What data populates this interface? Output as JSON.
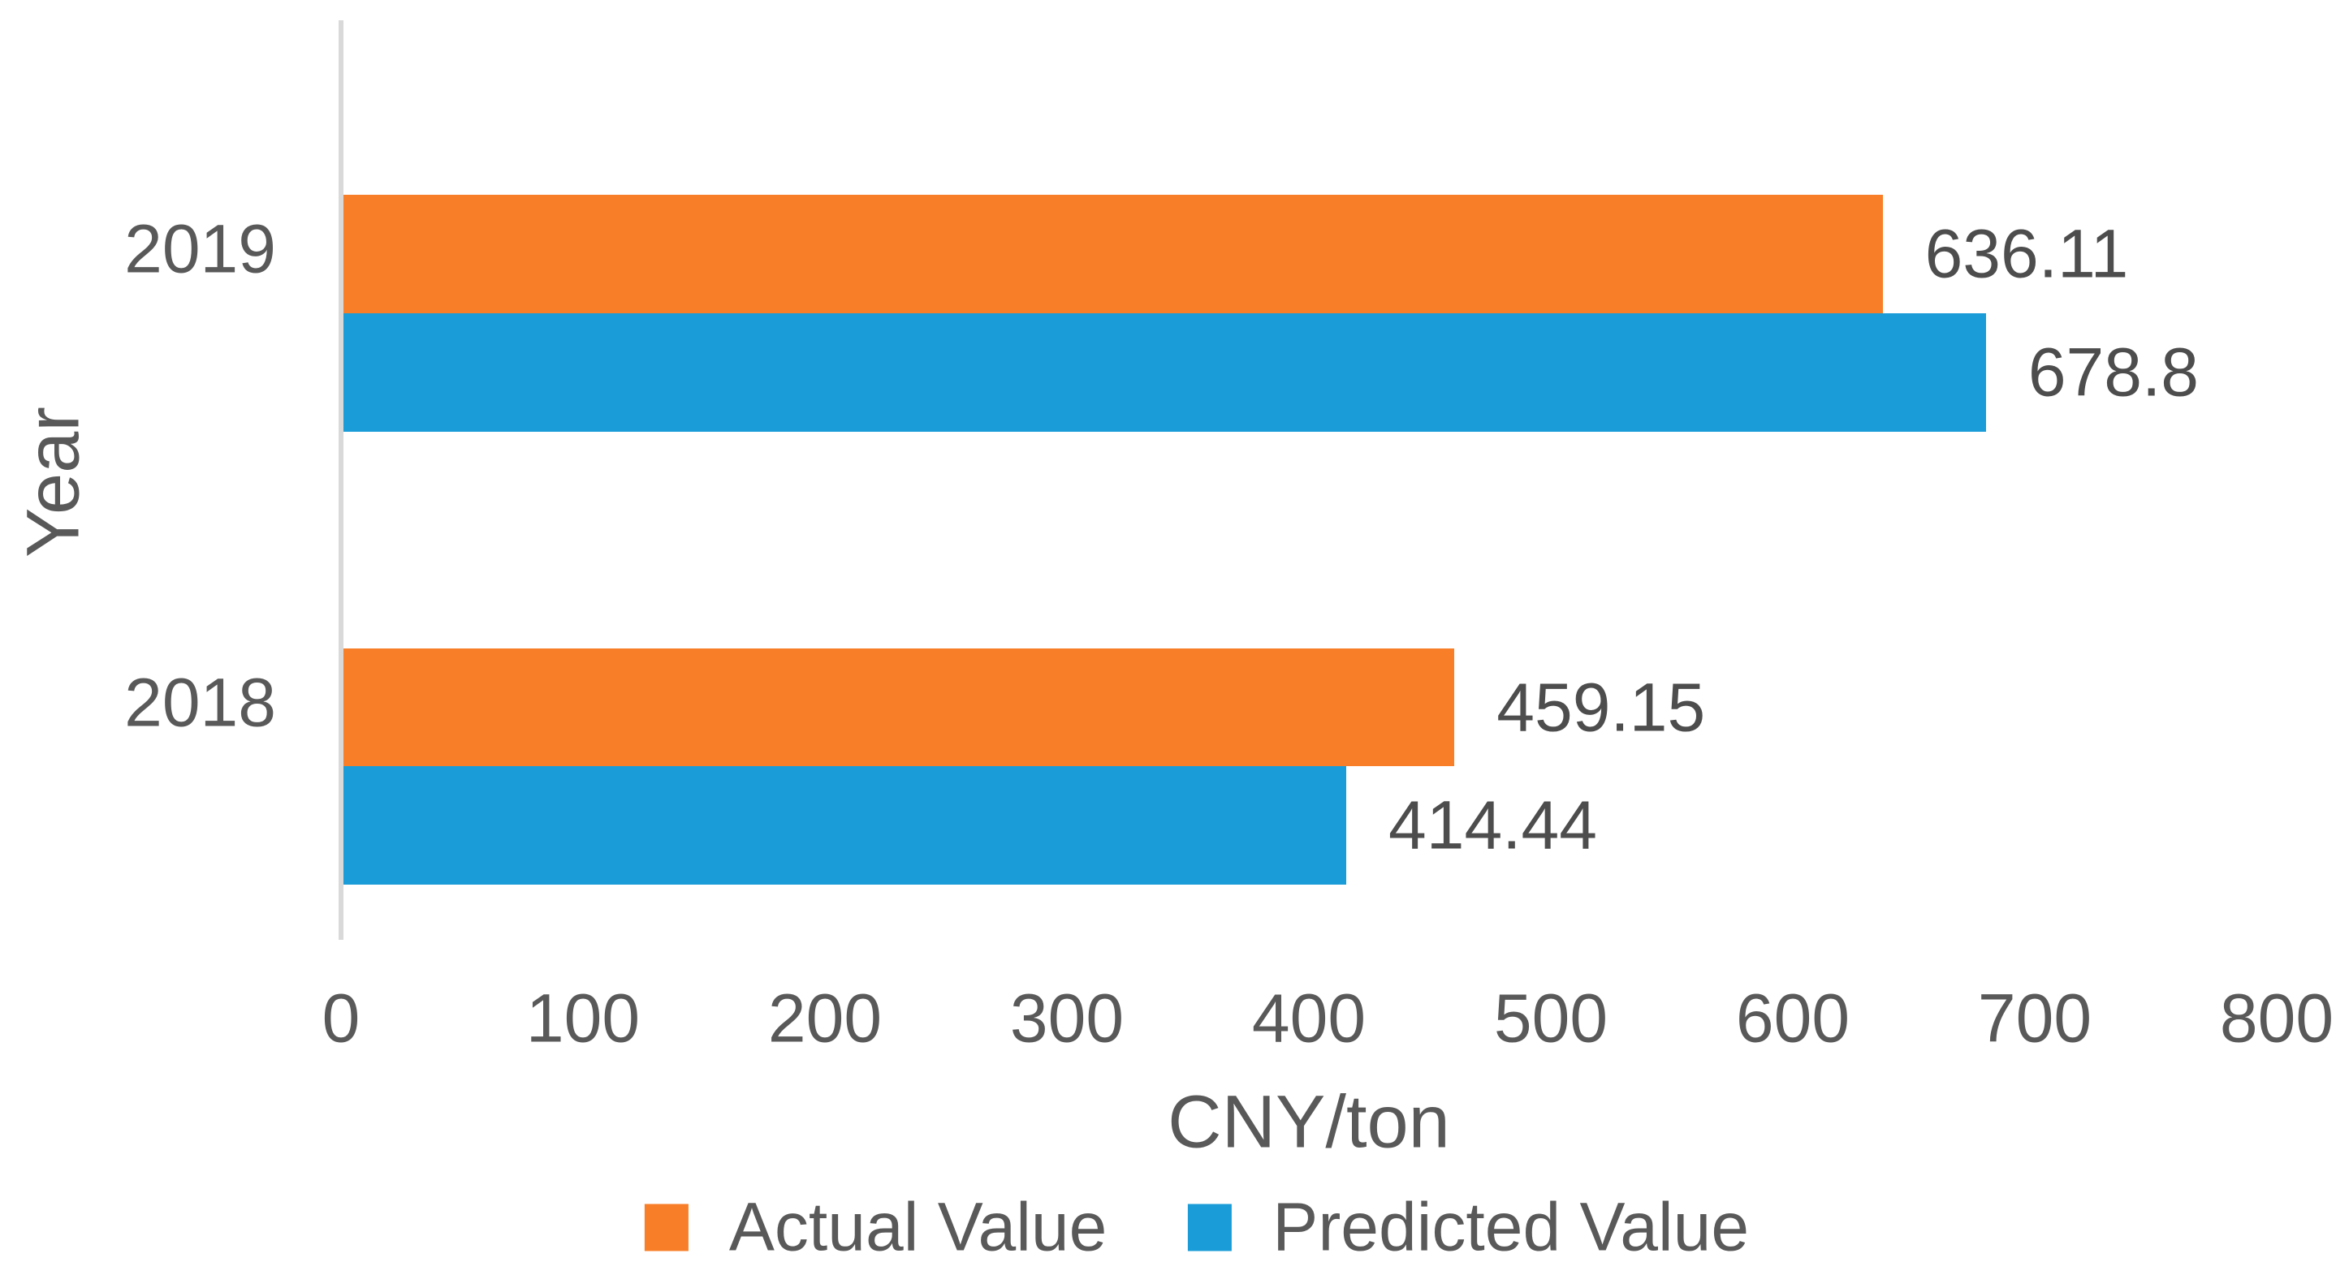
{
  "chart_data": {
    "type": "bar",
    "orientation": "horizontal",
    "title": "",
    "categories": [
      "2019",
      "2018"
    ],
    "series": [
      {
        "name": "Actual Value",
        "color": "#F87E27",
        "values": [
          636.11,
          459.15
        ],
        "labels": [
          "636.11",
          "459.15"
        ]
      },
      {
        "name": "Predicted Value",
        "color": "#1A9CD8",
        "values": [
          678.8,
          414.44
        ],
        "labels": [
          "678.8",
          "414.44"
        ]
      }
    ],
    "xlabel": "CNY/ton",
    "ylabel": "Year",
    "xlim": [
      0,
      800
    ],
    "xticks": [
      0,
      100,
      200,
      300,
      400,
      500,
      600,
      700,
      800
    ],
    "grid": false,
    "legend_position": "bottom",
    "colors": {
      "text": "#595959",
      "data_label": "#4D4D4D",
      "axis_line": "#D9D9D9",
      "background": "#FFFFFF"
    }
  }
}
